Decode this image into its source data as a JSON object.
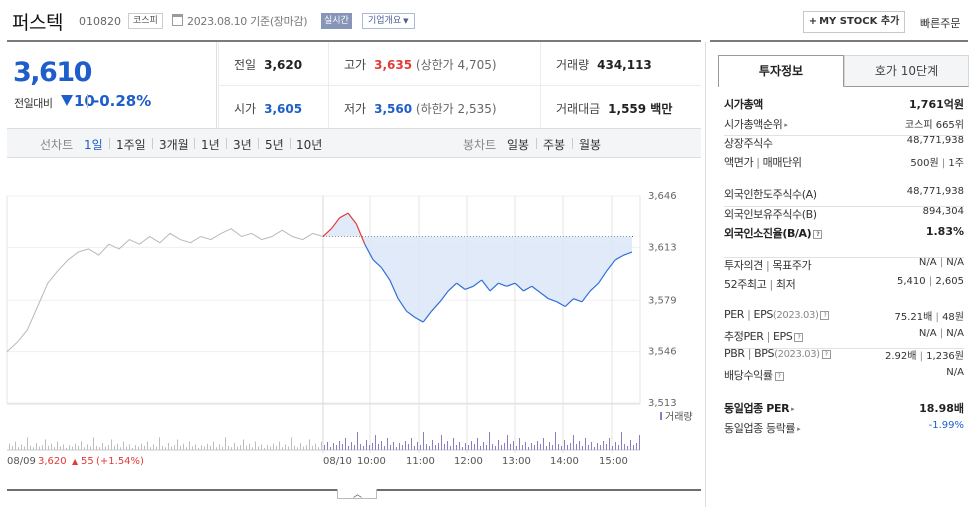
{
  "header": {
    "name": "퍼스텍",
    "code": "010820",
    "market": "코스피",
    "date_text": "2023.08.10 기준(장마감)",
    "realtime": "실시간",
    "company_overview": "기업개요",
    "mystock": "MY STOCK 추가",
    "quick_order": "빠른주문"
  },
  "price": {
    "current": "3,610",
    "change_label": "전일대비",
    "change": "10",
    "change_pct": "-0.28%",
    "change_color": "#1e5ec9"
  },
  "stats": {
    "prev_close": {
      "label": "전일",
      "value": "3,620"
    },
    "high": {
      "label": "고가",
      "value": "3,635",
      "note": "(상한가 4,705)"
    },
    "volume": {
      "label": "거래량",
      "value": "434,113"
    },
    "open": {
      "label": "시가",
      "value": "3,605"
    },
    "low": {
      "label": "저가",
      "value": "3,560",
      "note": "(하한가 2,535)"
    },
    "amount": {
      "label": "거래대금",
      "value": "1,559 백만"
    }
  },
  "toolbar": {
    "line_label": "선차트",
    "line_periods": [
      "1일",
      "1주일",
      "3개월",
      "1년",
      "3년",
      "5년",
      "10년"
    ],
    "selected_period": "1일",
    "candle_label": "봉차트",
    "candle_periods": [
      "일봉",
      "주봉",
      "월봉"
    ]
  },
  "chart_data": {
    "type": "line",
    "title": "",
    "ylabel": "",
    "y_ticks": [
      "3,646",
      "3,613",
      "3,579",
      "3,546",
      "3,513"
    ],
    "ylim": [
      3513,
      3646
    ],
    "prev_close_line": 3620,
    "prev_day": {
      "label": "08/09",
      "close": "3,620",
      "change": "55",
      "change_pct": "(+1.54%)"
    },
    "x_ticks": [
      "08/10",
      "10:00",
      "11:00",
      "12:00",
      "13:00",
      "14:00",
      "15:00"
    ],
    "volume_legend": "거래량",
    "series": [
      {
        "name": "08/09",
        "color": "#b9b9b9",
        "values": [
          3546,
          3552,
          3560,
          3575,
          3590,
          3598,
          3605,
          3610,
          3612,
          3608,
          3615,
          3612,
          3618,
          3615,
          3620,
          3616,
          3622,
          3618,
          3616,
          3620,
          3618,
          3622,
          3625,
          3620,
          3622,
          3618,
          3620,
          3624,
          3620,
          3618,
          3622,
          3620
        ]
      },
      {
        "name": "08/10",
        "color": "#2f6fd6",
        "values": [
          3620,
          3625,
          3632,
          3635,
          3628,
          3615,
          3605,
          3600,
          3592,
          3580,
          3572,
          3568,
          3565,
          3572,
          3578,
          3585,
          3590,
          3586,
          3588,
          3592,
          3585,
          3590,
          3588,
          3590,
          3585,
          3588,
          3584,
          3580,
          3578,
          3575,
          3580,
          3578,
          3585,
          3590,
          3598,
          3605,
          3608,
          3610
        ]
      }
    ]
  },
  "invest": {
    "tab_active": "투자정보",
    "tab_other": "호가 10단계",
    "rows": [
      {
        "k": "시가총액",
        "v": "1,761억원",
        "bold": true
      },
      {
        "k": "시가총액순위",
        "v": "코스피 665위",
        "arrow": true
      },
      {
        "k": "상장주식수",
        "v": "48,771,938"
      },
      {
        "k": "액면가",
        "k2": "매매단위",
        "v": "500원",
        "v2": "1주"
      },
      {
        "k": "외국인한도주식수(A)",
        "v": "48,771,938"
      },
      {
        "k": "외국인보유주식수(B)",
        "v": "894,304"
      },
      {
        "k": "외국인소진율(B/A)",
        "v": "1.83%",
        "bold": true,
        "q": true
      },
      {
        "k": "투자의견",
        "k2": "목표주가",
        "v": "N/A",
        "v2": "N/A"
      },
      {
        "k": "52주최고",
        "k2": "최저",
        "v": "5,410",
        "v2": "2,605"
      },
      {
        "k": "PER",
        "k2": "EPS",
        "k2note": "(2023.03)",
        "v": "75.21배",
        "v2": "48원",
        "q": true
      },
      {
        "k": "추정PER",
        "k2": "EPS",
        "v": "N/A",
        "v2": "N/A",
        "q": true
      },
      {
        "k": "PBR",
        "k2": "BPS",
        "k2note": "(2023.03)",
        "v": "2.92배",
        "v2": "1,236원",
        "q": true
      },
      {
        "k": "배당수익률",
        "v": "N/A",
        "q": true
      },
      {
        "k": "동일업종 PER",
        "v": "18.98배",
        "bold": true,
        "arrow": true
      },
      {
        "k": "동일업종 등락률",
        "v": "-1.99%",
        "arrow": true,
        "blue": true
      }
    ]
  }
}
